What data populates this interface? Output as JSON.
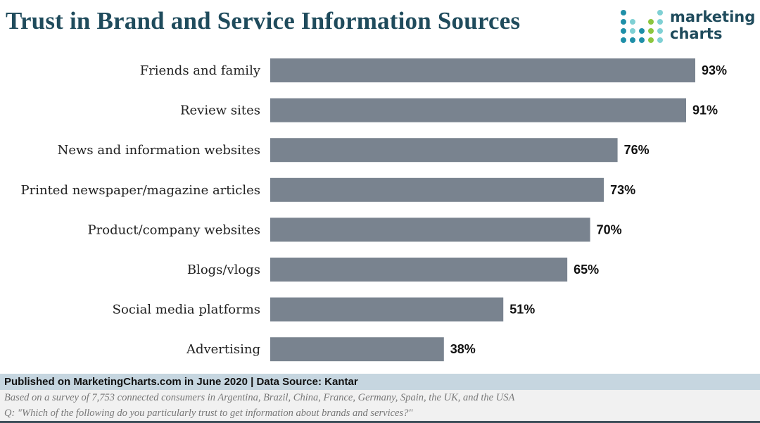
{
  "chart_data": {
    "type": "bar",
    "orientation": "horizontal",
    "title": "Trust in Brand and Service Information Sources",
    "categories": [
      "Friends and family",
      "Review sites",
      "News and information websites",
      "Printed newspaper/magazine articles",
      "Product/company websites",
      "Blogs/vlogs",
      "Social media platforms",
      "Advertising"
    ],
    "values": [
      93,
      91,
      76,
      73,
      70,
      65,
      51,
      38
    ],
    "value_labels": [
      "93%",
      "91%",
      "76%",
      "73%",
      "70%",
      "65%",
      "51%",
      "38%"
    ],
    "xlim": [
      0,
      100
    ],
    "grid": false,
    "bar_color": "#79838f"
  },
  "logo": {
    "line1": "marketing",
    "line2": "charts"
  },
  "footer": {
    "published": "Published on MarketingCharts.com in June 2020 | Data Source: Kantar",
    "note": "Based on a survey of 7,753 connected consumers in Argentina, Brazil, China, France, Germany, Spain, the UK, and the USA",
    "question": "Q: \"Which of the following do you particularly trust to get information about brands and services?\""
  }
}
